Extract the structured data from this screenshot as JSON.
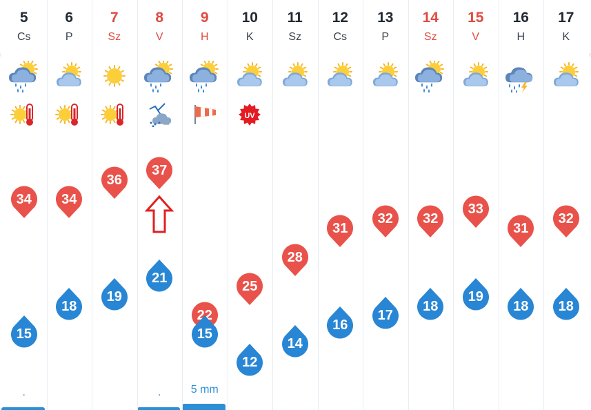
{
  "colors": {
    "max_pin": "#e9524a",
    "min_pin": "#2886d4",
    "weekend_text": "#e04a3f",
    "precip": "#2d8fd6",
    "arrow": "#e0201f"
  },
  "days": [
    {
      "num": "5",
      "abbr": "Cs",
      "weekend": false,
      "icon": "showers-partly-cloudy-icon",
      "alert": "heat-thermometer-icon",
      "max": "34",
      "min": "15",
      "precip_dot": ".",
      "precip_amount": "",
      "precip_bar": true
    },
    {
      "num": "6",
      "abbr": "P",
      "weekend": false,
      "icon": "partly-cloudy-sun-icon",
      "alert": "heat-thermometer-icon",
      "max": "34",
      "min": "18",
      "precip_dot": "",
      "precip_amount": "",
      "precip_bar": false
    },
    {
      "num": "7",
      "abbr": "Sz",
      "weekend": true,
      "icon": "sunny-icon",
      "alert": "heat-thermometer-icon",
      "max": "36",
      "min": "19",
      "precip_dot": "",
      "precip_amount": "",
      "precip_bar": false
    },
    {
      "num": "8",
      "abbr": "V",
      "weekend": true,
      "icon": "showers-partly-cloudy-icon",
      "alert": "storm-wind-icon",
      "max": "37",
      "min": "21",
      "precip_dot": ".",
      "precip_amount": "",
      "precip_bar": true
    },
    {
      "num": "9",
      "abbr": "H",
      "weekend": true,
      "icon": "showers-partly-cloudy-icon",
      "alert": "windsock-icon",
      "max": "22",
      "min": "15",
      "precip_dot": "",
      "precip_amount": "5 mm",
      "precip_bar": true
    },
    {
      "num": "10",
      "abbr": "K",
      "weekend": false,
      "icon": "partly-cloudy-sun-icon",
      "alert": "uv-warning-icon",
      "max": "25",
      "min": "12",
      "precip_dot": "",
      "precip_amount": "",
      "precip_bar": false
    },
    {
      "num": "11",
      "abbr": "Sz",
      "weekend": false,
      "icon": "partly-cloudy-sun-icon",
      "alert": "",
      "max": "28",
      "min": "14",
      "precip_dot": "",
      "precip_amount": "",
      "precip_bar": false
    },
    {
      "num": "12",
      "abbr": "Cs",
      "weekend": false,
      "icon": "partly-cloudy-sun-icon",
      "alert": "",
      "max": "31",
      "min": "16",
      "precip_dot": "",
      "precip_amount": "",
      "precip_bar": false
    },
    {
      "num": "13",
      "abbr": "P",
      "weekend": false,
      "icon": "partly-cloudy-sun-icon",
      "alert": "",
      "max": "32",
      "min": "17",
      "precip_dot": "",
      "precip_amount": "",
      "precip_bar": false
    },
    {
      "num": "14",
      "abbr": "Sz",
      "weekend": true,
      "icon": "showers-partly-cloudy-icon",
      "alert": "",
      "max": "32",
      "min": "18",
      "precip_dot": "",
      "precip_amount": "",
      "precip_bar": false
    },
    {
      "num": "15",
      "abbr": "V",
      "weekend": true,
      "icon": "partly-cloudy-sun-icon",
      "alert": "",
      "max": "33",
      "min": "19",
      "precip_dot": "",
      "precip_amount": "",
      "precip_bar": false
    },
    {
      "num": "16",
      "abbr": "H",
      "weekend": false,
      "icon": "thunderstorm-icon",
      "alert": "",
      "max": "31",
      "min": "18",
      "precip_dot": "",
      "precip_amount": "",
      "precip_bar": false
    },
    {
      "num": "17",
      "abbr": "K",
      "weekend": false,
      "icon": "partly-cloudy-sun-icon",
      "alert": "",
      "max": "32",
      "min": "18",
      "precip_dot": "",
      "precip_amount": "",
      "precip_bar": false
    }
  ],
  "annotation": {
    "icon": "up-arrow-outline-icon",
    "target_day": "8"
  }
}
